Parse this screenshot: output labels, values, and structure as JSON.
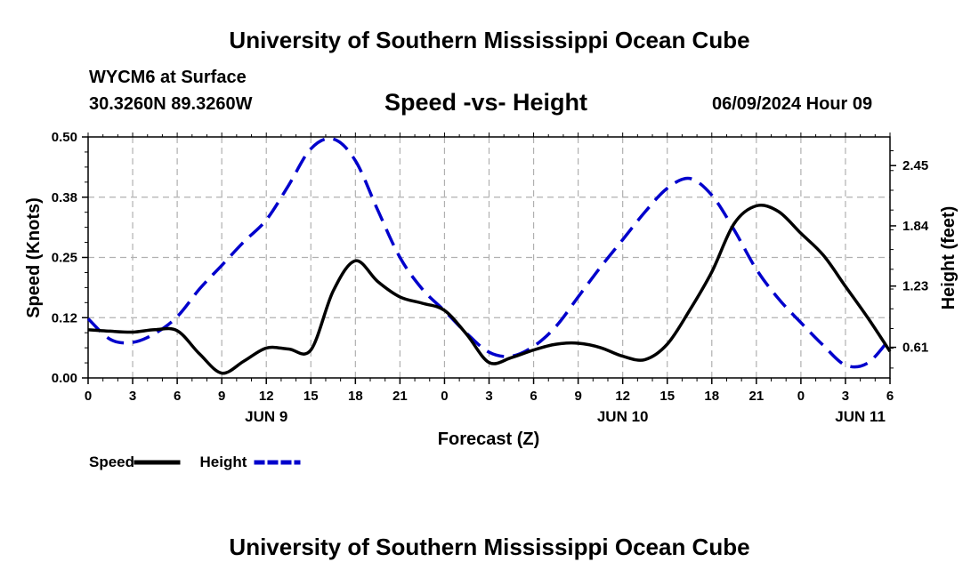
{
  "header": {
    "title": "University of Southern Mississippi Ocean Cube",
    "station": "WYCM6 at Surface",
    "coords": "30.3260N  89.3260W",
    "chart_title": "Speed -vs- Height",
    "date": "06/09/2024 Hour 09"
  },
  "footer": {
    "title": "University of Southern Mississippi Ocean Cube"
  },
  "colors": {
    "speed": "#000000",
    "height": "#0000cc",
    "grid": "#b0b0b0"
  },
  "chart_data": {
    "type": "line",
    "title": "Speed -vs- Height",
    "xlabel": "Forecast (Z)",
    "ylabel": "Speed (Knots)",
    "y2label": "Height (feet)",
    "xlim": [
      0,
      54
    ],
    "ylim": [
      0,
      0.5
    ],
    "y2lim": [
      0.3,
      2.74
    ],
    "x_ticks": [
      0,
      3,
      6,
      9,
      12,
      15,
      18,
      21,
      24,
      27,
      30,
      33,
      36,
      39,
      42,
      45,
      48,
      51,
      54
    ],
    "x_tick_labels": [
      "0",
      "3",
      "6",
      "9",
      "12",
      "15",
      "18",
      "21",
      "0",
      "3",
      "6",
      "9",
      "12",
      "15",
      "18",
      "21",
      "0",
      "3",
      "6"
    ],
    "day_labels": [
      {
        "x": 12,
        "label": "JUN 9"
      },
      {
        "x": 36,
        "label": "JUN 10"
      },
      {
        "x": 52,
        "label": "JUN 11"
      }
    ],
    "y_ticks": [
      0,
      0.125,
      0.25,
      0.375,
      0.5
    ],
    "y_tick_labels": [
      "0.00",
      "0.12",
      "0.25",
      "0.38",
      "0.50"
    ],
    "y2_ticks": [
      0.61,
      1.23,
      1.84,
      2.45
    ],
    "y2_tick_labels": [
      "0.61",
      "1.23",
      "1.84",
      "2.45"
    ],
    "grid": true,
    "series": [
      {
        "name": "Speed",
        "axis": "left",
        "style": "solid",
        "x": [
          0,
          1.5,
          3,
          4.5,
          6,
          7.5,
          9,
          10.5,
          12,
          13.5,
          15,
          16.5,
          18,
          19.5,
          21,
          22.5,
          24,
          25.5,
          27,
          28.5,
          30,
          31.5,
          33,
          34.5,
          36,
          37.5,
          39,
          40.5,
          42,
          43.5,
          45,
          46.5,
          48,
          49.5,
          51,
          52.5,
          54
        ],
        "values": [
          0.1,
          0.097,
          0.095,
          0.1,
          0.098,
          0.05,
          0.01,
          0.035,
          0.062,
          0.06,
          0.058,
          0.18,
          0.243,
          0.2,
          0.168,
          0.155,
          0.14,
          0.09,
          0.032,
          0.042,
          0.058,
          0.07,
          0.072,
          0.063,
          0.045,
          0.038,
          0.07,
          0.14,
          0.22,
          0.32,
          0.357,
          0.345,
          0.3,
          0.255,
          0.19,
          0.125,
          0.055
        ]
      },
      {
        "name": "Height",
        "axis": "right",
        "style": "dashed",
        "x": [
          0,
          1.5,
          3,
          4.5,
          6,
          7.5,
          9,
          10.5,
          12,
          13.5,
          15,
          16.5,
          18,
          19.5,
          21,
          22.5,
          24,
          25.5,
          27,
          28.5,
          30,
          31.5,
          33,
          34.5,
          36,
          37.5,
          39,
          40.5,
          42,
          43.5,
          45,
          46.5,
          48,
          49.5,
          51,
          52.5,
          54
        ],
        "values": [
          0.9,
          0.69,
          0.66,
          0.75,
          0.92,
          1.2,
          1.44,
          1.68,
          1.9,
          2.25,
          2.62,
          2.72,
          2.5,
          2.0,
          1.52,
          1.2,
          0.98,
          0.75,
          0.56,
          0.52,
          0.62,
          0.82,
          1.12,
          1.42,
          1.7,
          1.98,
          2.22,
          2.32,
          2.15,
          1.8,
          1.4,
          1.1,
          0.86,
          0.63,
          0.43,
          0.45,
          0.7
        ]
      }
    ],
    "legend": [
      {
        "name": "Speed",
        "color": "#000000",
        "style": "solid"
      },
      {
        "name": "Height",
        "color": "#0000cc",
        "style": "dashed"
      }
    ]
  }
}
